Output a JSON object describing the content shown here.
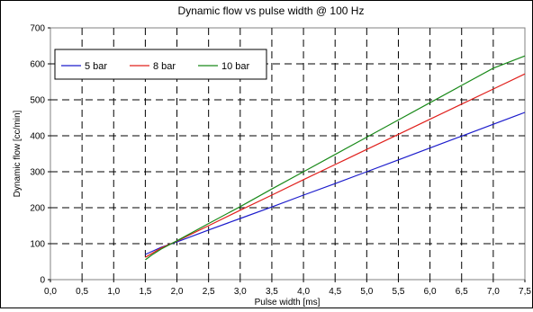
{
  "chart_data": {
    "type": "line",
    "title": "Dynamic flow vs pulse width @ 100 Hz",
    "xlabel": "Pulse width [ms]",
    "ylabel": "Dynamic flow [cc/min]",
    "xlim": [
      0,
      7.5
    ],
    "ylim": [
      0,
      700
    ],
    "x_ticks": [
      "0,0",
      "0,5",
      "1,0",
      "1,5",
      "2,0",
      "2,5",
      "3,0",
      "3,5",
      "4,0",
      "4,5",
      "5,0",
      "5,5",
      "6,0",
      "6,5",
      "7,0",
      "7,5"
    ],
    "y_ticks": [
      "0",
      "100",
      "200",
      "300",
      "400",
      "500",
      "600",
      "700"
    ],
    "grid": true,
    "legend_position": "top-left",
    "series": [
      {
        "name": "5 bar",
        "color": "#1c1ccc",
        "x": [
          1.5,
          1.75,
          2.0,
          2.5,
          3.0,
          3.5,
          4.0,
          4.5,
          5.0,
          5.5,
          6.0,
          6.5,
          7.0,
          7.5
        ],
        "y": [
          70,
          90,
          105,
          138,
          170,
          202,
          235,
          267,
          300,
          333,
          366,
          399,
          432,
          465
        ]
      },
      {
        "name": "8 bar",
        "color": "#e0201c",
        "x": [
          1.5,
          1.75,
          2.0,
          2.5,
          3.0,
          3.5,
          4.0,
          4.5,
          5.0,
          5.5,
          6.0,
          6.5,
          7.0,
          7.5
        ],
        "y": [
          62,
          88,
          107,
          150,
          193,
          235,
          278,
          320,
          362,
          404,
          446,
          488,
          530,
          572
        ]
      },
      {
        "name": "10 bar",
        "color": "#1a8a1a",
        "x": [
          1.5,
          1.6,
          1.75,
          2.0,
          2.5,
          3.0,
          3.5,
          4.0,
          4.5,
          5.0,
          5.5,
          6.0,
          6.5,
          7.0,
          7.5
        ],
        "y": [
          55,
          68,
          85,
          108,
          156,
          203,
          252,
          300,
          348,
          396,
          444,
          492,
          540,
          588,
          622
        ]
      }
    ]
  }
}
